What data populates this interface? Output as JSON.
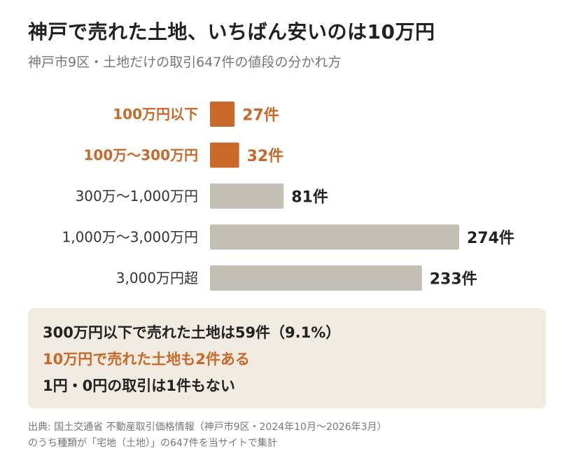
{
  "header": {
    "title": "神戸で売れた土地、いちばん安いのは10万円",
    "subtitle": "神戸市9区・土地だけの取引647件の値段の分かれ方"
  },
  "colors": {
    "highlight": "#c8692a",
    "neutral": "#c3bfb5",
    "label_default": "#333333",
    "summary_bg": "#f1ebe1"
  },
  "chart_data": {
    "type": "bar",
    "orientation": "horizontal",
    "title": "",
    "xlabel": "",
    "ylabel": "",
    "categories": [
      "100万円以下",
      "100万〜300万円",
      "300万〜1,000万円",
      "1,000万〜3,000万円",
      "3,000万円超"
    ],
    "values": [
      27,
      32,
      81,
      274,
      233
    ],
    "value_labels": [
      "27件",
      "32件",
      "81件",
      "274件",
      "233件"
    ],
    "highlighted": [
      true,
      true,
      false,
      false,
      false
    ],
    "xlim": [
      0,
      274
    ],
    "grid": false,
    "legend": "none"
  },
  "summary": {
    "line1": "300万円以下で売れた土地は59件（9.1%）",
    "line2": "10万円で売れた土地も2件ある",
    "line3": "1円・0円の取引は1件もない"
  },
  "source": {
    "line1": "出典: 国土交通省 不動産取引価格情報（神戸市9区・2024年10月〜2026年3月）",
    "line2": "のうち種類が「宅地（土地）」の647件を当サイトで集計"
  }
}
